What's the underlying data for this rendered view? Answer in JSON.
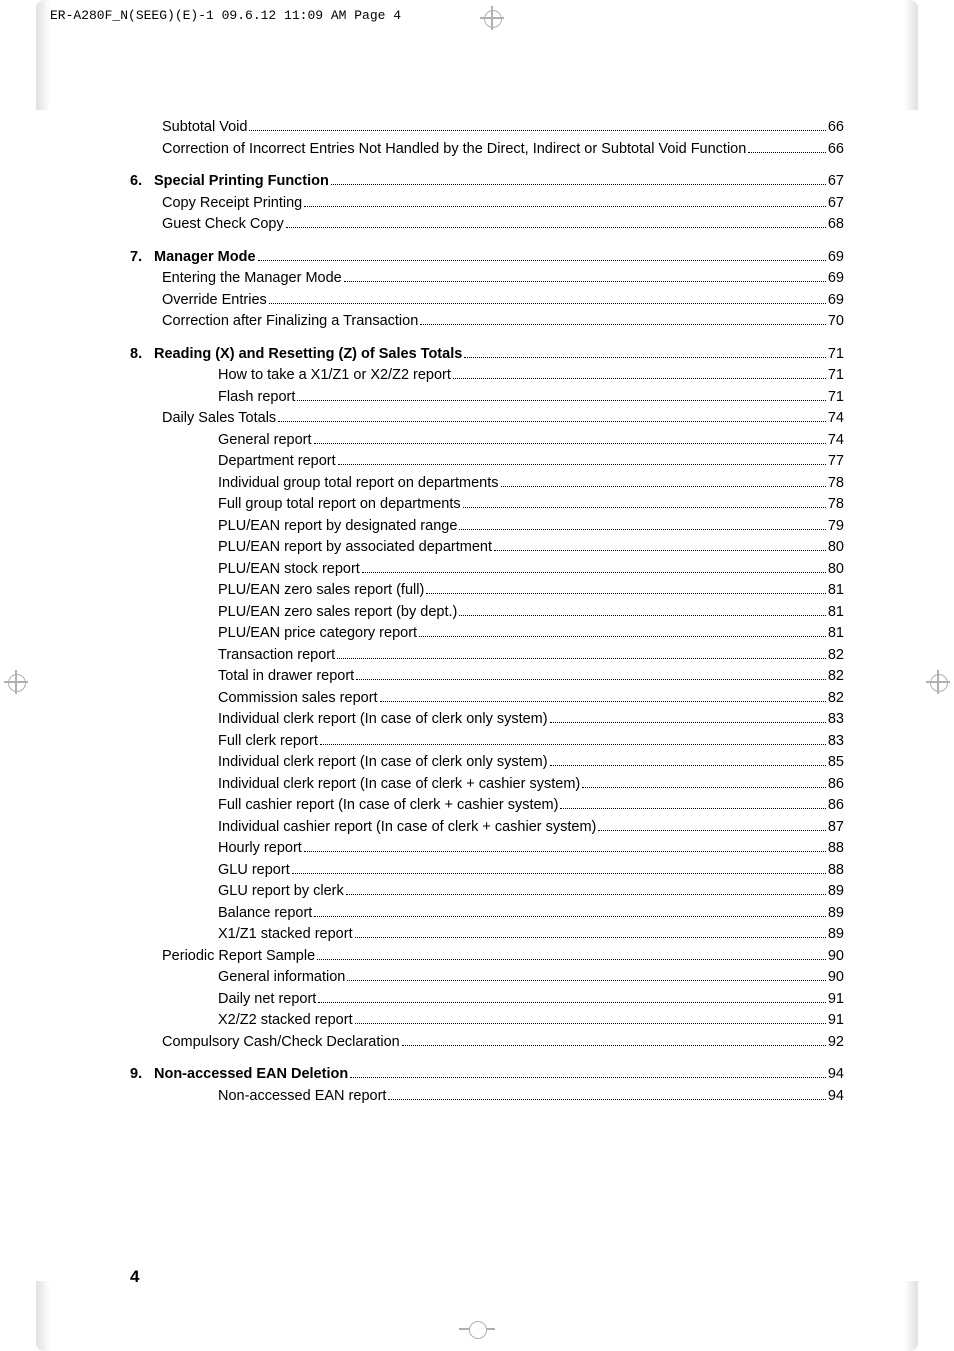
{
  "slug": "ER-A280F_N(SEEG)(E)-1  09.6.12 11:09 AM  Page 4",
  "page_number": "4",
  "sections": [
    {
      "title": null,
      "items": [
        {
          "level": 1,
          "label": "Subtotal Void",
          "page": "66"
        },
        {
          "level": 1,
          "label": "Correction of Incorrect Entries Not Handled by the Direct, Indirect or Subtotal Void Function",
          "page": "66"
        }
      ]
    },
    {
      "num": "6.",
      "title": "Special Printing Function",
      "title_page": "67",
      "items": [
        {
          "level": 1,
          "label": "Copy Receipt Printing",
          "page": "67"
        },
        {
          "level": 1,
          "label": "Guest Check Copy",
          "page": "68"
        }
      ]
    },
    {
      "num": "7.",
      "title": "Manager Mode",
      "title_page": "69",
      "items": [
        {
          "level": 1,
          "label": "Entering the Manager Mode",
          "page": "69"
        },
        {
          "level": 1,
          "label": "Override Entries",
          "page": "69"
        },
        {
          "level": 1,
          "label": "Correction after Finalizing a Transaction",
          "page": "70"
        }
      ]
    },
    {
      "num": "8.",
      "title": "Reading (X) and Resetting (Z) of Sales Totals",
      "title_page": "71",
      "items": [
        {
          "level": 2,
          "label": "How to take a X1/Z1 or X2/Z2 report",
          "page": "71"
        },
        {
          "level": 2,
          "label": "Flash report",
          "page": "71"
        },
        {
          "level": 1,
          "label": "Daily Sales Totals",
          "page": "74"
        },
        {
          "level": 2,
          "label": "General report",
          "page": "74"
        },
        {
          "level": 2,
          "label": "Department report",
          "page": "77"
        },
        {
          "level": 2,
          "label": "Individual group total report on departments",
          "page": "78"
        },
        {
          "level": 2,
          "label": "Full group total report on departments",
          "page": "78"
        },
        {
          "level": 2,
          "label": "PLU/EAN report by designated range",
          "page": "79"
        },
        {
          "level": 2,
          "label": "PLU/EAN report by associated department",
          "page": "80"
        },
        {
          "level": 2,
          "label": "PLU/EAN stock report",
          "page": "80"
        },
        {
          "level": 2,
          "label": "PLU/EAN zero sales report (full)",
          "page": "81"
        },
        {
          "level": 2,
          "label": "PLU/EAN zero sales report (by dept.)",
          "page": "81"
        },
        {
          "level": 2,
          "label": "PLU/EAN price category report",
          "page": "81"
        },
        {
          "level": 2,
          "label": "Transaction report",
          "page": "82"
        },
        {
          "level": 2,
          "label": "Total in drawer report",
          "page": "82"
        },
        {
          "level": 2,
          "label": "Commission sales report",
          "page": "82"
        },
        {
          "level": 2,
          "label": "Individual clerk report (In case of clerk only system)",
          "page": "83"
        },
        {
          "level": 2,
          "label": "Full clerk report",
          "page": "83"
        },
        {
          "level": 2,
          "label": "Individual clerk report (In case of clerk only system)",
          "page": "85"
        },
        {
          "level": 2,
          "label": "Individual clerk report (In case of clerk + cashier system)",
          "page": "86"
        },
        {
          "level": 2,
          "label": "Full cashier report (In case of clerk + cashier system)",
          "page": "86"
        },
        {
          "level": 2,
          "label": "Individual cashier report (In case of clerk + cashier system)",
          "page": "87"
        },
        {
          "level": 2,
          "label": "Hourly report",
          "page": "88"
        },
        {
          "level": 2,
          "label": "GLU report",
          "page": "88"
        },
        {
          "level": 2,
          "label": "GLU report by clerk",
          "page": "89"
        },
        {
          "level": 2,
          "label": "Balance report",
          "page": "89"
        },
        {
          "level": 2,
          "label": "X1/Z1 stacked report",
          "page": "89"
        },
        {
          "level": 1,
          "label": "Periodic Report Sample",
          "page": "90"
        },
        {
          "level": 2,
          "label": "General information",
          "page": "90"
        },
        {
          "level": 2,
          "label": "Daily net report",
          "page": "91"
        },
        {
          "level": 2,
          "label": "X2/Z2 stacked report",
          "page": "91"
        },
        {
          "level": 1,
          "label": "Compulsory Cash/Check Declaration",
          "page": "92"
        }
      ]
    },
    {
      "num": "9.",
      "title": "Non-accessed EAN Deletion",
      "title_page": "94",
      "items": [
        {
          "level": 2,
          "label": "Non-accessed EAN report",
          "page": "94"
        }
      ]
    }
  ]
}
